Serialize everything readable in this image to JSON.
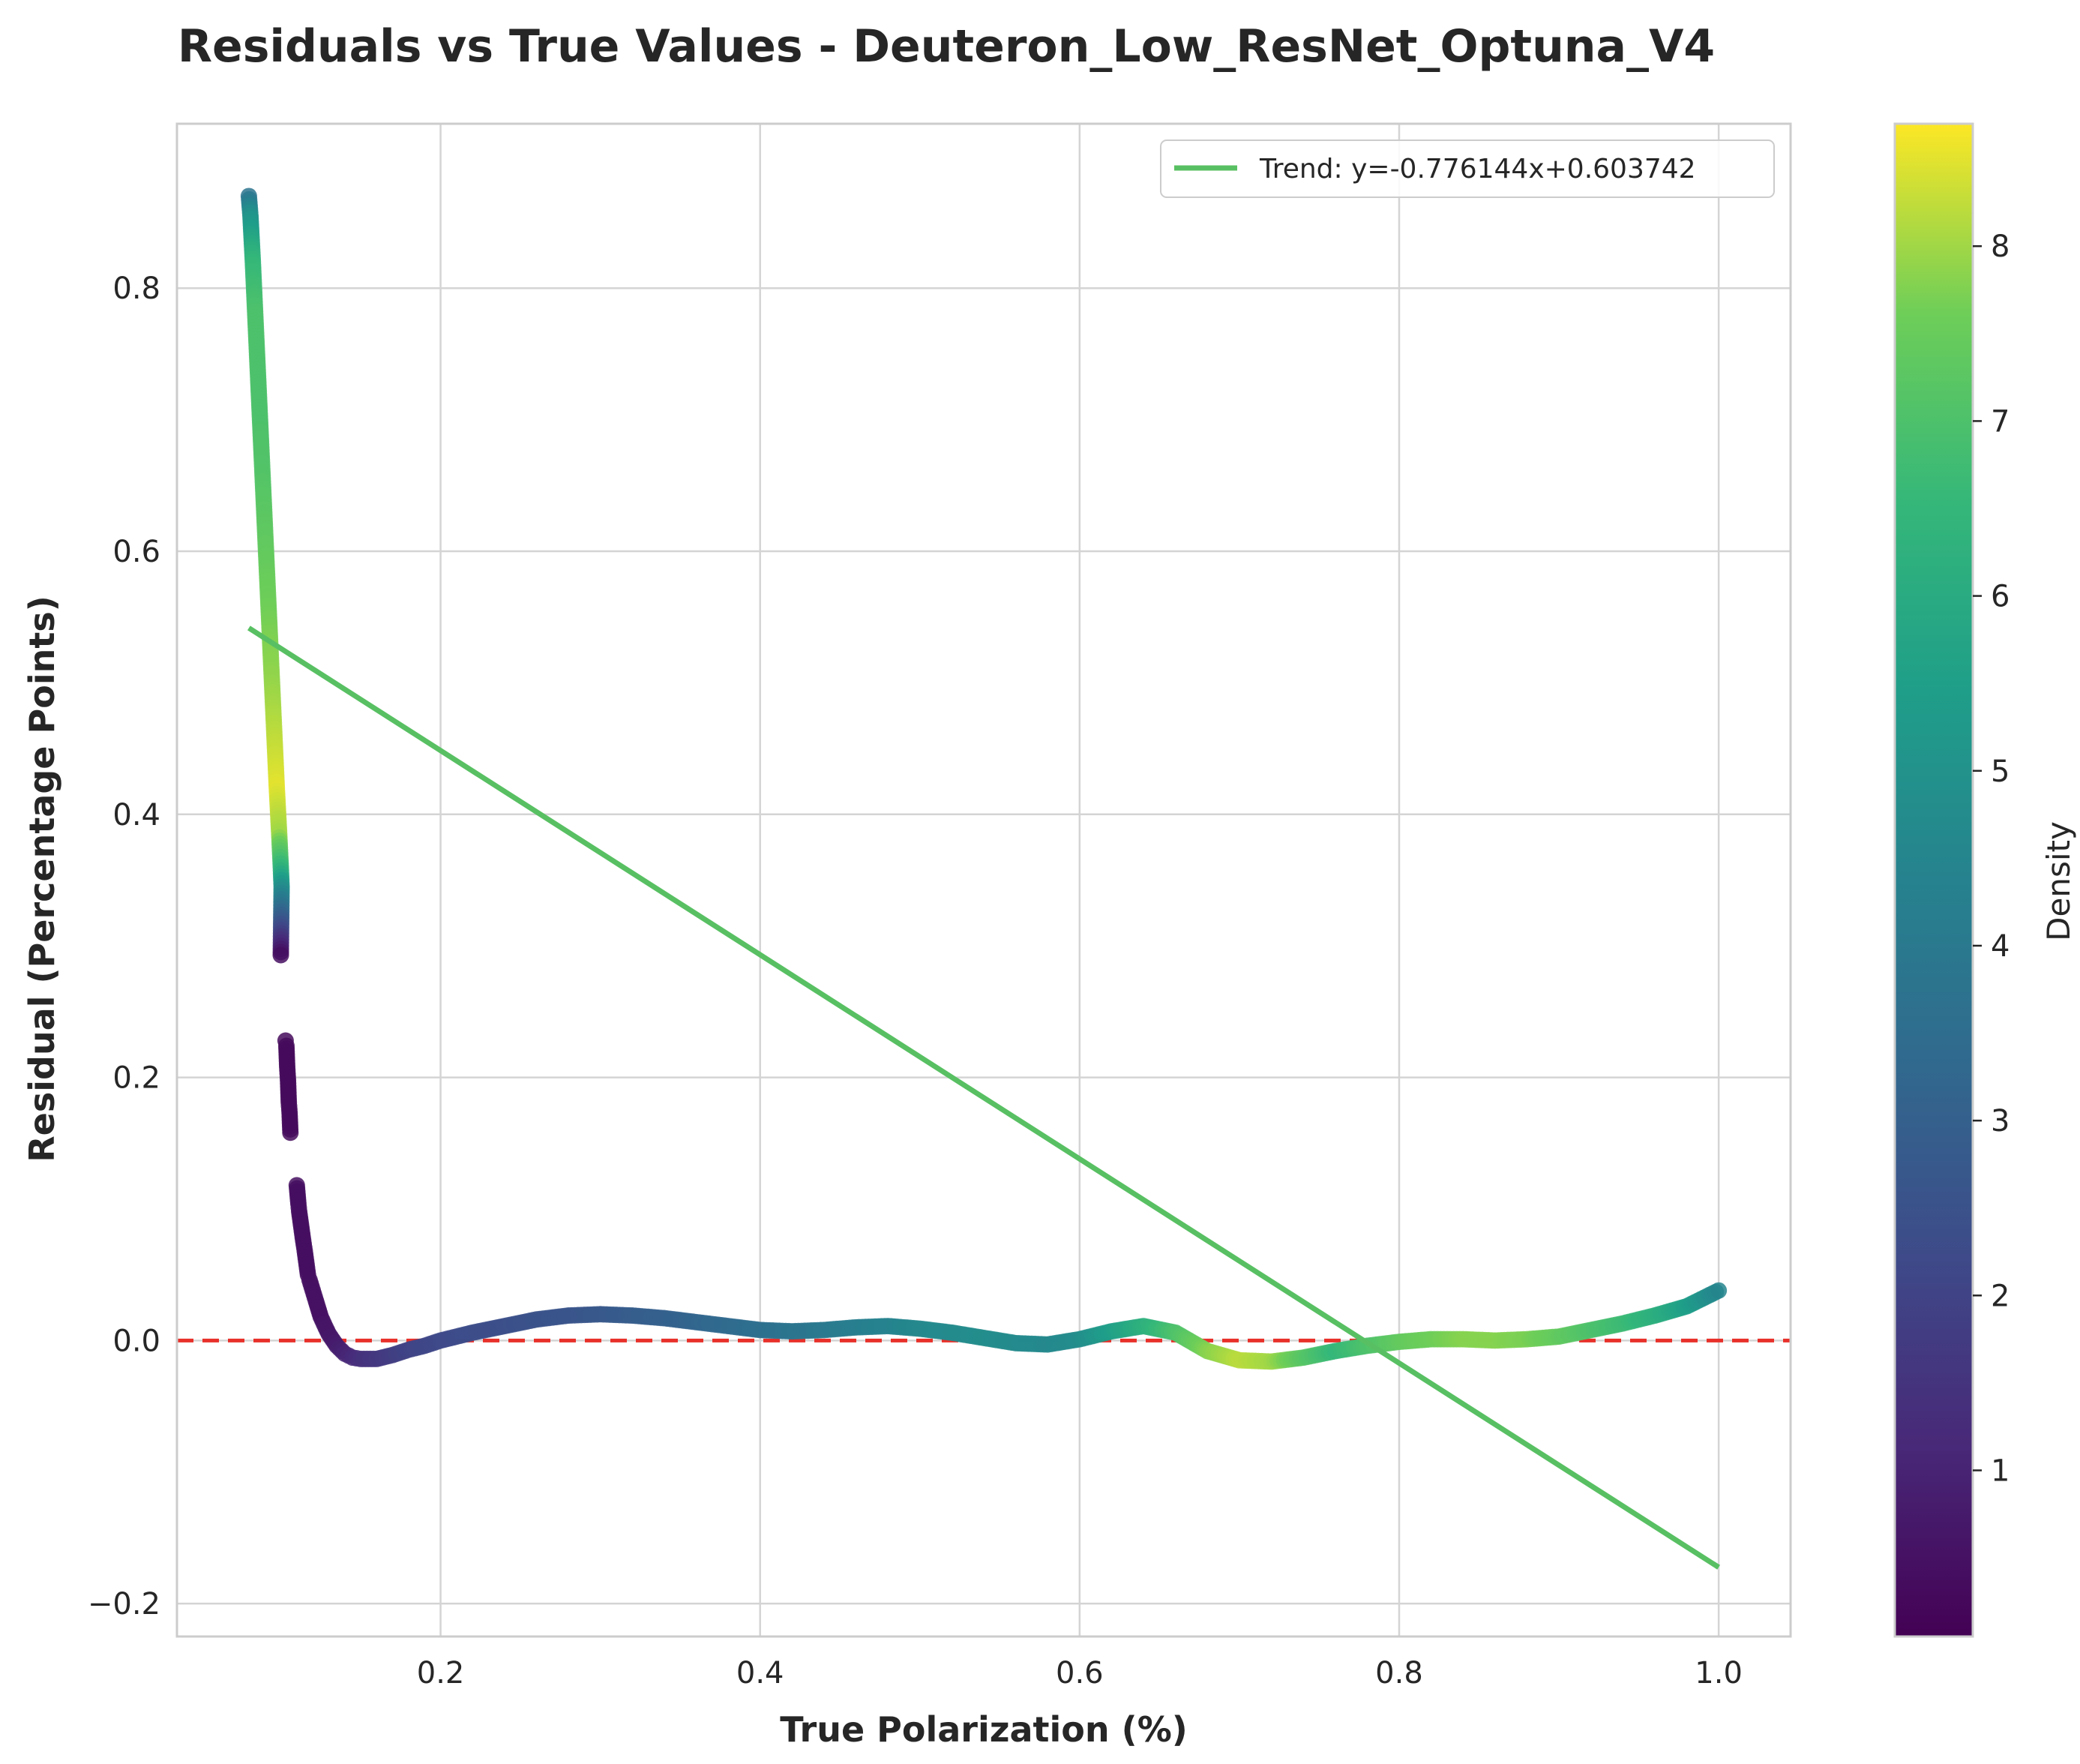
{
  "chart_data": {
    "type": "scatter",
    "title": "Residuals vs True Values - Deuteron_Low_ResNet_Optuna_V4",
    "xlabel": "True Polarization (%)",
    "ylabel": "Residual (Percentage Points)",
    "xlim": [
      0.035,
      1.045
    ],
    "ylim": [
      -0.225,
      0.925
    ],
    "xticks": [
      0.2,
      0.4,
      0.6,
      0.8,
      1.0
    ],
    "xtick_labels": [
      "0.2",
      "0.4",
      "0.6",
      "0.8",
      "1.0"
    ],
    "yticks": [
      -0.2,
      0.0,
      0.2,
      0.4,
      0.6,
      0.8
    ],
    "ytick_labels": [
      "−0.2",
      "0.0",
      "0.2",
      "0.4",
      "0.6",
      "0.8"
    ],
    "grid": true,
    "colormap": "viridis",
    "colorbar": {
      "label": "Density",
      "range": [
        0.05,
        8.7
      ],
      "ticks": [
        1,
        2,
        3,
        4,
        5,
        6,
        7,
        8
      ],
      "tick_labels": [
        "1",
        "2",
        "3",
        "4",
        "5",
        "6",
        "7",
        "8"
      ]
    },
    "reference_line": {
      "y": 0.0,
      "color": "#e8302a",
      "style": "dashed"
    },
    "trend": {
      "label": "Trend: y=-0.776144x+0.603742",
      "slope": -0.776144,
      "intercept": 0.603742,
      "x_range": [
        0.08,
        1.0
      ],
      "color": "#58c062"
    },
    "legend_position": "upper right",
    "series": [
      {
        "points": [
          {
            "x": 0.08,
            "y": 0.87,
            "d": 3.8
          },
          {
            "x": 0.081,
            "y": 0.855,
            "d": 5.0
          },
          {
            "x": 0.0825,
            "y": 0.82,
            "d": 6.5
          },
          {
            "x": 0.084,
            "y": 0.78,
            "d": 7.0
          },
          {
            "x": 0.0855,
            "y": 0.74,
            "d": 7.0
          },
          {
            "x": 0.087,
            "y": 0.7,
            "d": 7.0
          },
          {
            "x": 0.0885,
            "y": 0.66,
            "d": 7.1
          },
          {
            "x": 0.09,
            "y": 0.62,
            "d": 7.3
          },
          {
            "x": 0.0915,
            "y": 0.58,
            "d": 7.5
          },
          {
            "x": 0.093,
            "y": 0.54,
            "d": 7.7
          },
          {
            "x": 0.0945,
            "y": 0.5,
            "d": 7.9
          },
          {
            "x": 0.096,
            "y": 0.46,
            "d": 8.2
          },
          {
            "x": 0.0975,
            "y": 0.42,
            "d": 8.5
          },
          {
            "x": 0.099,
            "y": 0.385,
            "d": 8.0
          },
          {
            "x": 0.1,
            "y": 0.36,
            "d": 6.5
          },
          {
            "x": 0.1005,
            "y": 0.345,
            "d": 5.0
          },
          {
            "x": 0.1,
            "y": 0.293,
            "d": 0.4
          },
          {
            "x": 0.103,
            "y": 0.228,
            "d": 0.3
          },
          {
            "x": 0.1035,
            "y": 0.224,
            "d": 0.3
          },
          {
            "x": 0.104,
            "y": 0.208,
            "d": 0.3
          },
          {
            "x": 0.1045,
            "y": 0.198,
            "d": 0.3
          },
          {
            "x": 0.105,
            "y": 0.181,
            "d": 0.3
          },
          {
            "x": 0.1055,
            "y": 0.173,
            "d": 0.3
          },
          {
            "x": 0.106,
            "y": 0.158,
            "d": 0.3
          },
          {
            "x": 0.11,
            "y": 0.118,
            "d": 0.4
          },
          {
            "x": 0.111,
            "y": 0.104,
            "d": 0.4
          },
          {
            "x": 0.1115,
            "y": 0.098,
            "d": 0.4
          },
          {
            "x": 0.114,
            "y": 0.076,
            "d": 0.4
          },
          {
            "x": 0.115,
            "y": 0.068,
            "d": 0.4
          },
          {
            "x": 0.117,
            "y": 0.05,
            "d": 0.4
          },
          {
            "x": 0.118,
            "y": 0.046,
            "d": 0.4
          },
          {
            "x": 0.12,
            "y": 0.038,
            "d": 0.5
          },
          {
            "x": 0.122,
            "y": 0.03,
            "d": 0.5
          },
          {
            "x": 0.125,
            "y": 0.018,
            "d": 0.5
          },
          {
            "x": 0.128,
            "y": 0.01,
            "d": 0.6
          },
          {
            "x": 0.13,
            "y": 0.005,
            "d": 0.6
          },
          {
            "x": 0.135,
            "y": -0.004,
            "d": 0.8
          },
          {
            "x": 0.14,
            "y": -0.01,
            "d": 1.0
          },
          {
            "x": 0.145,
            "y": -0.013,
            "d": 1.2
          },
          {
            "x": 0.15,
            "y": -0.014,
            "d": 1.4
          },
          {
            "x": 0.16,
            "y": -0.014,
            "d": 1.6
          },
          {
            "x": 0.17,
            "y": -0.011,
            "d": 1.8
          },
          {
            "x": 0.18,
            "y": -0.007,
            "d": 2.0
          },
          {
            "x": 0.19,
            "y": -0.004,
            "d": 2.1
          },
          {
            "x": 0.2,
            "y": 0.0,
            "d": 2.2
          },
          {
            "x": 0.22,
            "y": 0.006,
            "d": 2.3
          },
          {
            "x": 0.24,
            "y": 0.011,
            "d": 2.4
          },
          {
            "x": 0.26,
            "y": 0.016,
            "d": 2.5
          },
          {
            "x": 0.28,
            "y": 0.019,
            "d": 2.6
          },
          {
            "x": 0.3,
            "y": 0.02,
            "d": 2.7
          },
          {
            "x": 0.32,
            "y": 0.019,
            "d": 2.9
          },
          {
            "x": 0.34,
            "y": 0.017,
            "d": 3.0
          },
          {
            "x": 0.36,
            "y": 0.014,
            "d": 3.2
          },
          {
            "x": 0.38,
            "y": 0.011,
            "d": 3.4
          },
          {
            "x": 0.4,
            "y": 0.008,
            "d": 3.6
          },
          {
            "x": 0.42,
            "y": 0.007,
            "d": 3.8
          },
          {
            "x": 0.44,
            "y": 0.008,
            "d": 4.0
          },
          {
            "x": 0.46,
            "y": 0.01,
            "d": 4.2
          },
          {
            "x": 0.48,
            "y": 0.011,
            "d": 4.4
          },
          {
            "x": 0.5,
            "y": 0.009,
            "d": 4.6
          },
          {
            "x": 0.52,
            "y": 0.006,
            "d": 4.7
          },
          {
            "x": 0.54,
            "y": 0.002,
            "d": 4.8
          },
          {
            "x": 0.56,
            "y": -0.002,
            "d": 4.7
          },
          {
            "x": 0.58,
            "y": -0.003,
            "d": 4.6
          },
          {
            "x": 0.6,
            "y": 0.001,
            "d": 4.8
          },
          {
            "x": 0.62,
            "y": 0.007,
            "d": 5.5
          },
          {
            "x": 0.64,
            "y": 0.011,
            "d": 6.2
          },
          {
            "x": 0.66,
            "y": 0.006,
            "d": 7.0
          },
          {
            "x": 0.68,
            "y": -0.008,
            "d": 7.8
          },
          {
            "x": 0.7,
            "y": -0.015,
            "d": 8.2
          },
          {
            "x": 0.72,
            "y": -0.016,
            "d": 8.0
          },
          {
            "x": 0.74,
            "y": -0.013,
            "d": 7.2
          },
          {
            "x": 0.76,
            "y": -0.008,
            "d": 6.5
          },
          {
            "x": 0.78,
            "y": -0.004,
            "d": 7.0
          },
          {
            "x": 0.8,
            "y": -0.001,
            "d": 7.4
          },
          {
            "x": 0.82,
            "y": 0.001,
            "d": 7.6
          },
          {
            "x": 0.84,
            "y": 0.001,
            "d": 7.8
          },
          {
            "x": 0.86,
            "y": 0.0,
            "d": 7.8
          },
          {
            "x": 0.88,
            "y": 0.001,
            "d": 7.7
          },
          {
            "x": 0.9,
            "y": 0.003,
            "d": 7.4
          },
          {
            "x": 0.92,
            "y": 0.008,
            "d": 7.0
          },
          {
            "x": 0.94,
            "y": 0.013,
            "d": 6.7
          },
          {
            "x": 0.96,
            "y": 0.019,
            "d": 6.2
          },
          {
            "x": 0.98,
            "y": 0.026,
            "d": 5.5
          },
          {
            "x": 1.0,
            "y": 0.038,
            "d": 4.5
          }
        ]
      }
    ]
  }
}
